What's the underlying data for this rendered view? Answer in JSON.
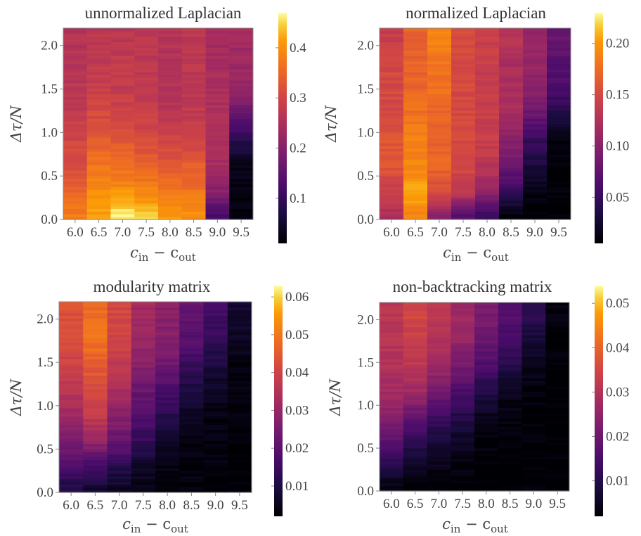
{
  "figure": {
    "panels": [
      {
        "id": "unnormalized",
        "chart_data": {
          "type": "heatmap",
          "title": "unnormalized Laplacian",
          "xlabel_main": "c",
          "xlabel_sub1": "in",
          "xlabel_mid": " − c",
          "xlabel_sub2": "out",
          "ylabel": "Δτ/N",
          "x": [
            6.0,
            6.5,
            7.0,
            7.5,
            8.0,
            8.5,
            9.0,
            9.5
          ],
          "x_ticks": [
            "6.0",
            "6.5",
            "7.0",
            "7.5",
            "8.0",
            "8.5",
            "9.0",
            "9.5"
          ],
          "y_ticks": [
            "0.0",
            "0.5",
            "1.0",
            "1.5",
            "2.0"
          ],
          "y_tick_values": [
            0.0,
            0.5,
            1.0,
            1.5,
            2.0
          ],
          "ylim": [
            0.0,
            2.2
          ],
          "colorbar_ticks": [
            "0.1",
            "0.2",
            "0.3",
            "0.4"
          ],
          "colorbar_values": [
            0.1,
            0.2,
            0.3,
            0.4
          ],
          "clim": [
            0.01,
            0.47
          ],
          "y_rows": [
            0.05,
            0.3,
            0.6,
            0.9,
            1.2,
            1.5,
            1.8,
            2.1
          ],
          "values": [
            [
              0.38,
              0.42,
              0.46,
              0.44,
              0.41,
              0.4,
              0.12,
              0.02
            ],
            [
              0.35,
              0.4,
              0.41,
              0.39,
              0.38,
              0.37,
              0.2,
              0.02
            ],
            [
              0.32,
              0.37,
              0.36,
              0.35,
              0.33,
              0.34,
              0.24,
              0.03
            ],
            [
              0.3,
              0.34,
              0.33,
              0.31,
              0.3,
              0.3,
              0.25,
              0.08
            ],
            [
              0.28,
              0.31,
              0.3,
              0.29,
              0.27,
              0.28,
              0.25,
              0.16
            ],
            [
              0.27,
              0.29,
              0.28,
              0.28,
              0.26,
              0.27,
              0.25,
              0.22
            ],
            [
              0.26,
              0.28,
              0.28,
              0.27,
              0.26,
              0.27,
              0.24,
              0.23
            ],
            [
              0.26,
              0.27,
              0.27,
              0.27,
              0.26,
              0.27,
              0.24,
              0.24
            ]
          ]
        }
      },
      {
        "id": "normalized",
        "chart_data": {
          "type": "heatmap",
          "title": "normalized Laplacian",
          "xlabel_main": "c",
          "xlabel_sub1": "in",
          "xlabel_mid": " − c",
          "xlabel_sub2": "out",
          "ylabel": "Δτ/N",
          "x": [
            6.0,
            6.5,
            7.0,
            7.5,
            8.0,
            8.5,
            9.0,
            9.5
          ],
          "x_ticks": [
            "6.0",
            "6.5",
            "7.0",
            "7.5",
            "8.0",
            "8.5",
            "9.0",
            "9.5"
          ],
          "y_ticks": [
            "0.0",
            "0.5",
            "1.0",
            "1.5",
            "2.0"
          ],
          "y_tick_values": [
            0.0,
            0.5,
            1.0,
            1.5,
            2.0
          ],
          "ylim": [
            0.0,
            2.2
          ],
          "colorbar_ticks": [
            "0.05",
            "0.10",
            "0.15",
            "0.20"
          ],
          "colorbar_values": [
            0.05,
            0.1,
            0.15,
            0.2
          ],
          "clim": [
            0.005,
            0.23
          ],
          "y_rows": [
            0.05,
            0.3,
            0.6,
            0.9,
            1.2,
            1.5,
            1.8,
            2.1
          ],
          "values": [
            [
              0.12,
              0.19,
              0.1,
              0.07,
              0.05,
              0.01,
              0.005,
              0.005
            ],
            [
              0.14,
              0.21,
              0.15,
              0.13,
              0.1,
              0.05,
              0.01,
              0.005
            ],
            [
              0.16,
              0.19,
              0.17,
              0.15,
              0.13,
              0.08,
              0.03,
              0.005
            ],
            [
              0.16,
              0.19,
              0.17,
              0.15,
              0.14,
              0.1,
              0.05,
              0.01
            ],
            [
              0.15,
              0.18,
              0.17,
              0.15,
              0.14,
              0.12,
              0.08,
              0.04
            ],
            [
              0.15,
              0.17,
              0.18,
              0.15,
              0.14,
              0.12,
              0.1,
              0.06
            ],
            [
              0.15,
              0.17,
              0.18,
              0.15,
              0.14,
              0.12,
              0.11,
              0.07
            ],
            [
              0.14,
              0.17,
              0.19,
              0.15,
              0.14,
              0.13,
              0.11,
              0.08
            ]
          ]
        }
      },
      {
        "id": "modularity",
        "chart_data": {
          "type": "heatmap",
          "title": "modularity matrix",
          "xlabel_main": "c",
          "xlabel_sub1": "in",
          "xlabel_mid": " − c",
          "xlabel_sub2": "out",
          "ylabel": "Δτ/N",
          "x": [
            6.0,
            6.5,
            7.0,
            7.5,
            8.0,
            8.5,
            9.0,
            9.5
          ],
          "x_ticks": [
            "6.0",
            "6.5",
            "7.0",
            "7.5",
            "8.0",
            "8.5",
            "9.0",
            "9.5"
          ],
          "y_ticks": [
            "0.0",
            "0.5",
            "1.0",
            "1.5",
            "2.0"
          ],
          "y_tick_values": [
            0.0,
            0.5,
            1.0,
            1.5,
            2.0
          ],
          "ylim": [
            0.0,
            2.2
          ],
          "colorbar_ticks": [
            "0.01",
            "0.02",
            "0.03",
            "0.04",
            "0.05",
            "0.06"
          ],
          "colorbar_values": [
            0.01,
            0.02,
            0.03,
            0.04,
            0.05,
            0.06
          ],
          "clim": [
            0.002,
            0.063
          ],
          "y_rows": [
            0.05,
            0.3,
            0.6,
            0.9,
            1.2,
            1.5,
            1.8,
            2.1
          ],
          "values": [
            [
              0.01,
              0.008,
              0.006,
              0.004,
              0.003,
              0.003,
              0.002,
              0.002
            ],
            [
              0.018,
              0.016,
              0.012,
              0.007,
              0.004,
              0.003,
              0.003,
              0.002
            ],
            [
              0.026,
              0.03,
              0.022,
              0.014,
              0.007,
              0.004,
              0.003,
              0.002
            ],
            [
              0.032,
              0.038,
              0.028,
              0.018,
              0.012,
              0.006,
              0.004,
              0.003
            ],
            [
              0.036,
              0.042,
              0.033,
              0.023,
              0.018,
              0.01,
              0.006,
              0.003
            ],
            [
              0.04,
              0.046,
              0.038,
              0.028,
              0.024,
              0.015,
              0.01,
              0.004
            ],
            [
              0.042,
              0.05,
              0.04,
              0.031,
              0.027,
              0.02,
              0.014,
              0.006
            ],
            [
              0.043,
              0.048,
              0.041,
              0.032,
              0.028,
              0.022,
              0.016,
              0.008
            ]
          ]
        }
      },
      {
        "id": "nonbacktracking",
        "chart_data": {
          "type": "heatmap",
          "title": "non-backtracking matrix",
          "xlabel_main": "c",
          "xlabel_sub1": "in",
          "xlabel_mid": " − c",
          "xlabel_sub2": "out",
          "ylabel": "Δτ/N",
          "x": [
            6.0,
            6.5,
            7.0,
            7.5,
            8.0,
            8.5,
            9.0,
            9.5
          ],
          "x_ticks": [
            "6.0",
            "6.5",
            "7.0",
            "7.5",
            "8.0",
            "8.5",
            "9.0",
            "9.5"
          ],
          "y_ticks": [
            "0.0",
            "0.5",
            "1.0",
            "1.5",
            "2.0"
          ],
          "y_tick_values": [
            0.0,
            0.5,
            1.0,
            1.5,
            2.0
          ],
          "ylim": [
            0.0,
            2.2
          ],
          "colorbar_ticks": [
            "0.01",
            "0.02",
            "0.03",
            "0.04",
            "0.05"
          ],
          "colorbar_values": [
            0.01,
            0.02,
            0.03,
            0.04,
            0.05
          ],
          "clim": [
            0.002,
            0.054
          ],
          "y_rows": [
            0.05,
            0.3,
            0.6,
            0.9,
            1.2,
            1.5,
            1.8,
            2.1
          ],
          "values": [
            [
              0.003,
              0.002,
              0.002,
              0.002,
              0.002,
              0.002,
              0.002,
              0.002
            ],
            [
              0.01,
              0.005,
              0.004,
              0.003,
              0.002,
              0.002,
              0.002,
              0.002
            ],
            [
              0.018,
              0.012,
              0.008,
              0.006,
              0.003,
              0.002,
              0.002,
              0.002
            ],
            [
              0.024,
              0.02,
              0.014,
              0.01,
              0.005,
              0.003,
              0.002,
              0.002
            ],
            [
              0.028,
              0.028,
              0.022,
              0.016,
              0.01,
              0.005,
              0.003,
              0.002
            ],
            [
              0.03,
              0.032,
              0.028,
              0.022,
              0.016,
              0.01,
              0.005,
              0.002
            ],
            [
              0.031,
              0.034,
              0.03,
              0.026,
              0.02,
              0.014,
              0.008,
              0.002
            ],
            [
              0.031,
              0.035,
              0.031,
              0.027,
              0.022,
              0.017,
              0.011,
              0.003
            ]
          ]
        }
      }
    ]
  }
}
